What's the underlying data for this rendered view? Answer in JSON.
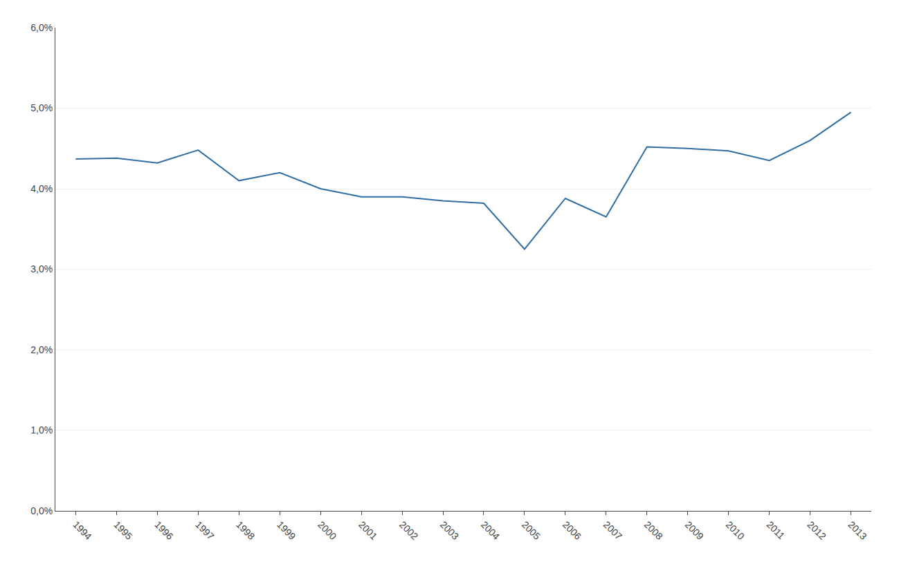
{
  "chart_data": {
    "type": "line",
    "x": [
      1994,
      1995,
      1996,
      1997,
      1998,
      1999,
      2000,
      2001,
      2002,
      2003,
      2004,
      2005,
      2006,
      2007,
      2008,
      2009,
      2010,
      2011,
      2012,
      2013
    ],
    "values": [
      0.0437,
      0.0438,
      0.0432,
      0.0448,
      0.041,
      0.042,
      0.04,
      0.039,
      0.039,
      0.0385,
      0.0382,
      0.0325,
      0.0388,
      0.0365,
      0.0452,
      0.045,
      0.0447,
      0.0435,
      0.046,
      0.0495
    ],
    "color": "#2E6DA4",
    "xlim": [
      1993.5,
      2013.5
    ],
    "xticks": [
      1994,
      1995,
      1996,
      1997,
      1998,
      1999,
      2000,
      2001,
      2002,
      2003,
      2004,
      2005,
      2006,
      2007,
      2008,
      2009,
      2010,
      2011,
      2012,
      2013
    ],
    "ylim": [
      0.0,
      0.06
    ],
    "yticks": [
      {
        "value": 0.0,
        "label": "0,0%"
      },
      {
        "value": 0.01,
        "label": "1,0%"
      },
      {
        "value": 0.02,
        "label": "2,0%"
      },
      {
        "value": 0.03,
        "label": "3,0%"
      },
      {
        "value": 0.04,
        "label": "4,0%"
      },
      {
        "value": 0.05,
        "label": "5,0%"
      },
      {
        "value": 0.06,
        "label": "6,0%"
      }
    ],
    "grid": "y"
  }
}
